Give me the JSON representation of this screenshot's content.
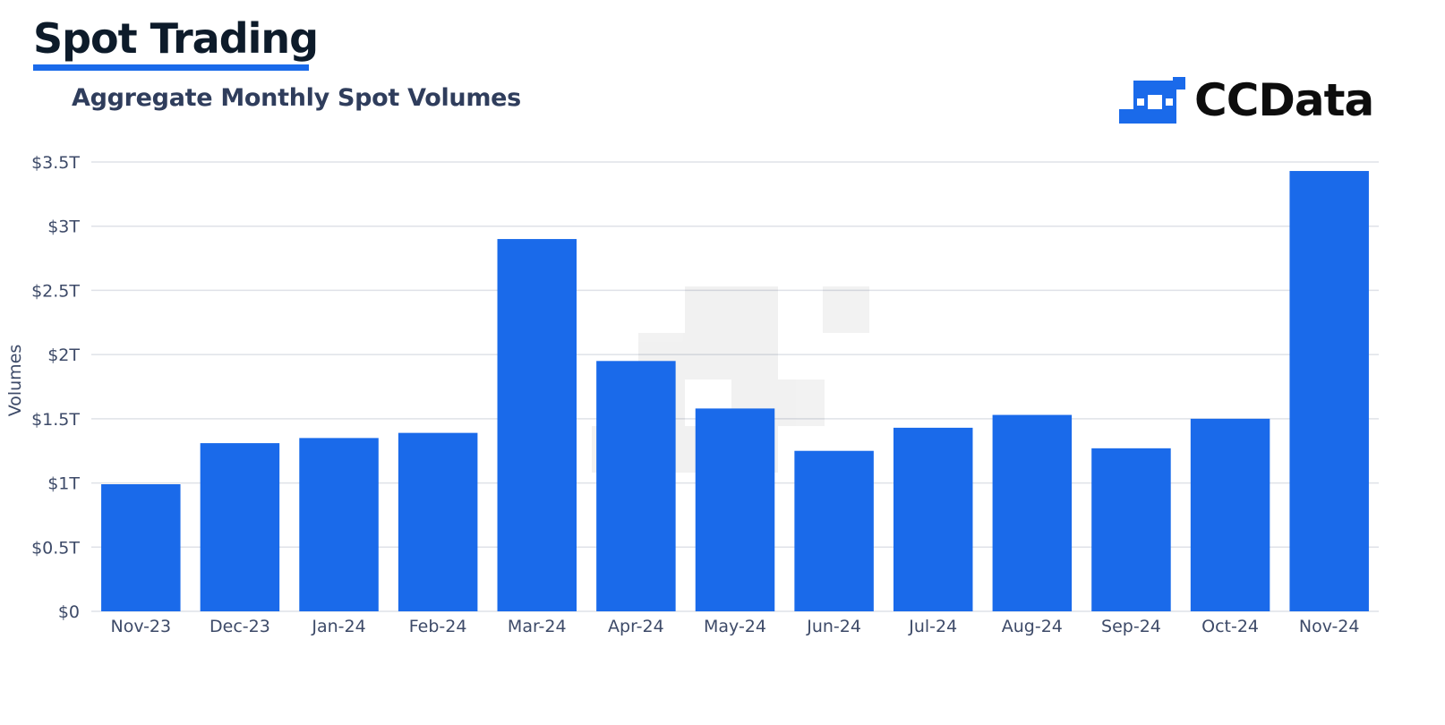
{
  "header": {
    "section_title": "Spot Trading",
    "subtitle": "Aggregate Monthly Spot Volumes",
    "logo_text": "CCData"
  },
  "colors": {
    "bar": "#1a6aea",
    "accent_underline": "#1a6aea",
    "grid": "#dfe2e8",
    "text": "#3d4a68"
  },
  "chart_data": {
    "type": "bar",
    "title": "Aggregate Monthly Spot Volumes",
    "ylabel": "Volumes",
    "xlabel": "",
    "categories": [
      "Nov-23",
      "Dec-23",
      "Jan-24",
      "Feb-24",
      "Mar-24",
      "Apr-24",
      "May-24",
      "Jun-24",
      "Jul-24",
      "Aug-24",
      "Sep-24",
      "Oct-24",
      "Nov-24"
    ],
    "values": [
      0.99,
      1.31,
      1.35,
      1.39,
      2.9,
      1.95,
      1.58,
      1.25,
      1.43,
      1.53,
      1.27,
      1.5,
      3.43
    ],
    "unit": "trillion USD",
    "ylim": [
      0,
      3.5
    ],
    "yticks": [
      0,
      0.5,
      1,
      1.5,
      2,
      2.5,
      3,
      3.5
    ],
    "ytick_labels": [
      "$0",
      "$0.5T",
      "$1T",
      "$1.5T",
      "$2T",
      "$2.5T",
      "$3T",
      "$3.5T"
    ],
    "grid": true,
    "legend": "none"
  }
}
